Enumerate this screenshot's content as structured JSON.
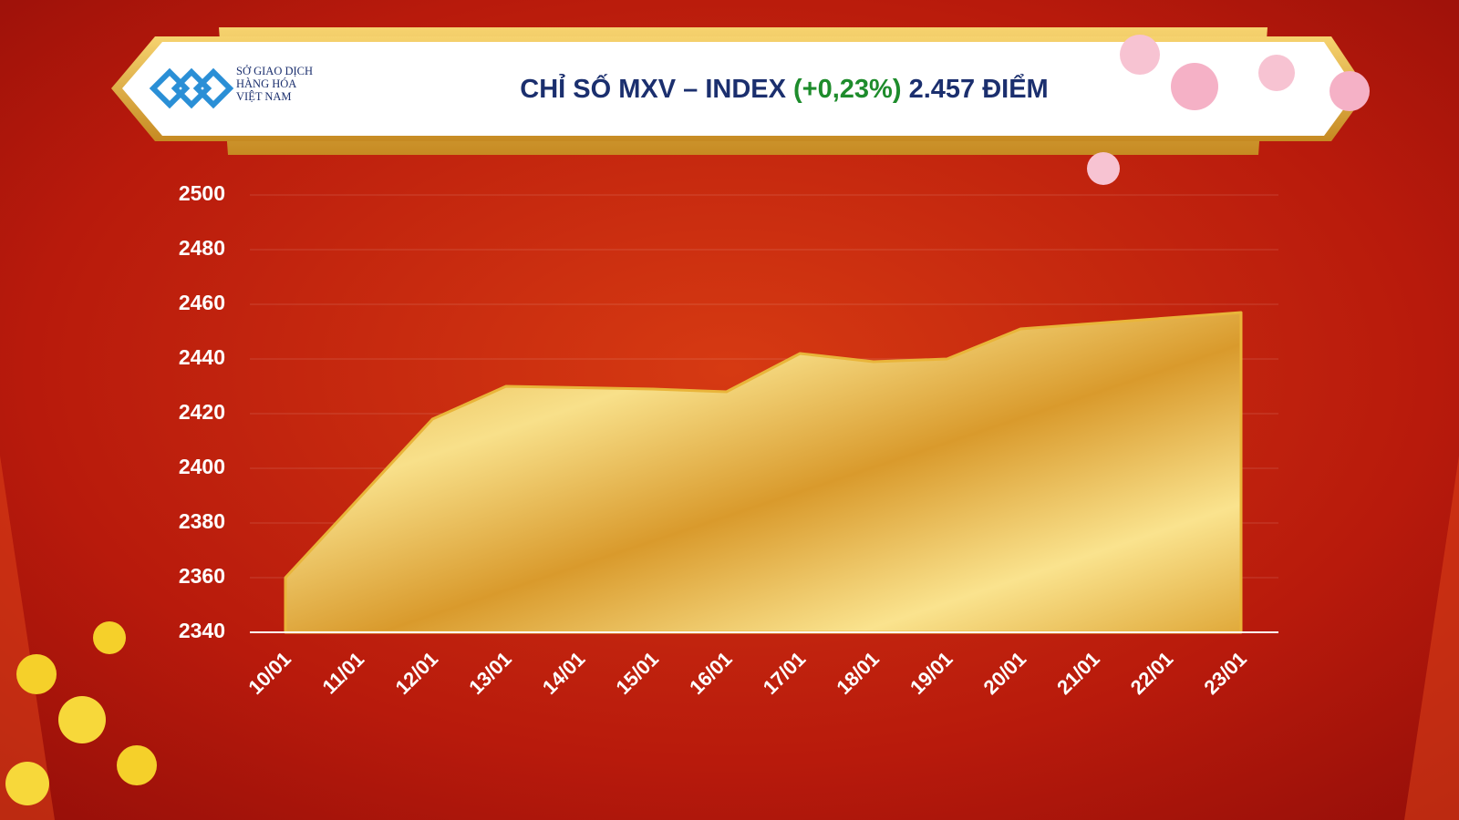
{
  "header": {
    "logo_lines": [
      "SỞ GIAO DỊCH",
      "HÀNG HÓA",
      "VIỆT NAM"
    ]
  },
  "chart_data": {
    "type": "area",
    "title": {
      "prefix": "CHỈ SỐ MXV – INDEX",
      "change": "(+0,23%)",
      "change_color": "#1e8c2c",
      "suffix": "2.457 ĐIỂM"
    },
    "categories": [
      "10/01",
      "11/01",
      "12/01",
      "13/01",
      "14/01",
      "15/01",
      "16/01",
      "17/01",
      "18/01",
      "19/01",
      "20/01",
      "21/01",
      "22/01",
      "23/01"
    ],
    "values": [
      2360,
      2389,
      2418,
      2430,
      2429.5,
      2429,
      2428,
      2442,
      2439,
      2440,
      2451,
      2453,
      2455,
      2457
    ],
    "color": "#e9b53a",
    "ylim": [
      2340,
      2500
    ],
    "yticks": [
      2340,
      2360,
      2380,
      2400,
      2420,
      2440,
      2460,
      2480,
      2500
    ],
    "grid": true
  }
}
